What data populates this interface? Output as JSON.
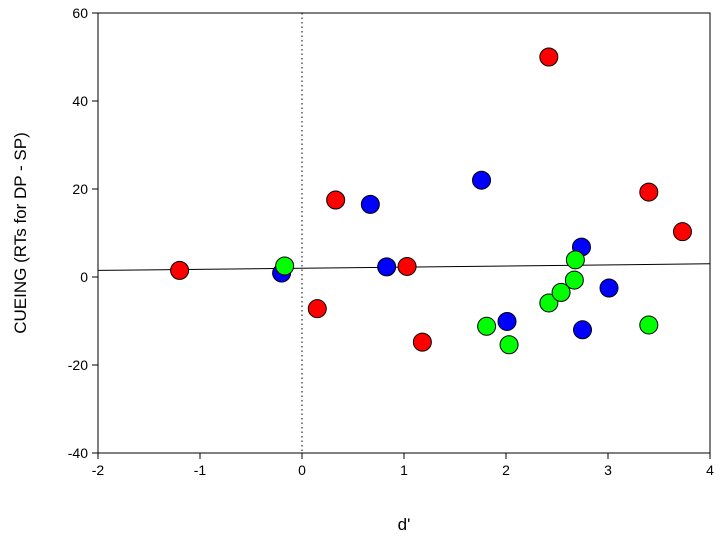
{
  "chart_data": {
    "type": "scatter",
    "title": "",
    "xlabel": "d'",
    "ylabel": "CUEING (RTs for DP - SP)",
    "xlim": [
      -2,
      4
    ],
    "ylim": [
      -40,
      60
    ],
    "x_ticks": [
      "-2",
      "-1",
      "0",
      "1",
      "2",
      "3",
      "4"
    ],
    "y_ticks": [
      "-40",
      "-20",
      "0",
      "20",
      "40",
      "60"
    ],
    "grid": false,
    "reference_line": {
      "x": 0,
      "style": "dotted"
    },
    "regression_line": {
      "x": [
        -2,
        4
      ],
      "y": [
        1.5,
        3.0
      ]
    },
    "series": [
      {
        "color": "#ff0000",
        "points": [
          {
            "x": -1.2,
            "y": 1.5
          },
          {
            "x": 0.15,
            "y": -7.2
          },
          {
            "x": 0.33,
            "y": 17.5
          },
          {
            "x": 1.03,
            "y": 2.4
          },
          {
            "x": 1.18,
            "y": -14.8
          },
          {
            "x": 2.42,
            "y": 50.0
          },
          {
            "x": 3.4,
            "y": 19.3
          },
          {
            "x": 3.73,
            "y": 10.3
          }
        ]
      },
      {
        "color": "#0000ff",
        "points": [
          {
            "x": -0.2,
            "y": 0.9
          },
          {
            "x": 0.67,
            "y": 16.5
          },
          {
            "x": 0.83,
            "y": 2.3
          },
          {
            "x": 1.76,
            "y": 22.0
          },
          {
            "x": 2.01,
            "y": -10.1
          },
          {
            "x": 2.74,
            "y": 6.8
          },
          {
            "x": 2.75,
            "y": -12.0
          },
          {
            "x": 3.01,
            "y": -2.5
          }
        ]
      },
      {
        "color": "#00ff00",
        "points": [
          {
            "x": -0.17,
            "y": 2.5
          },
          {
            "x": 1.81,
            "y": -11.2
          },
          {
            "x": 2.03,
            "y": -15.4
          },
          {
            "x": 2.42,
            "y": -5.9
          },
          {
            "x": 2.54,
            "y": -3.5
          },
          {
            "x": 2.67,
            "y": -0.7
          },
          {
            "x": 2.68,
            "y": 3.9
          },
          {
            "x": 3.4,
            "y": -10.9
          }
        ]
      }
    ]
  }
}
